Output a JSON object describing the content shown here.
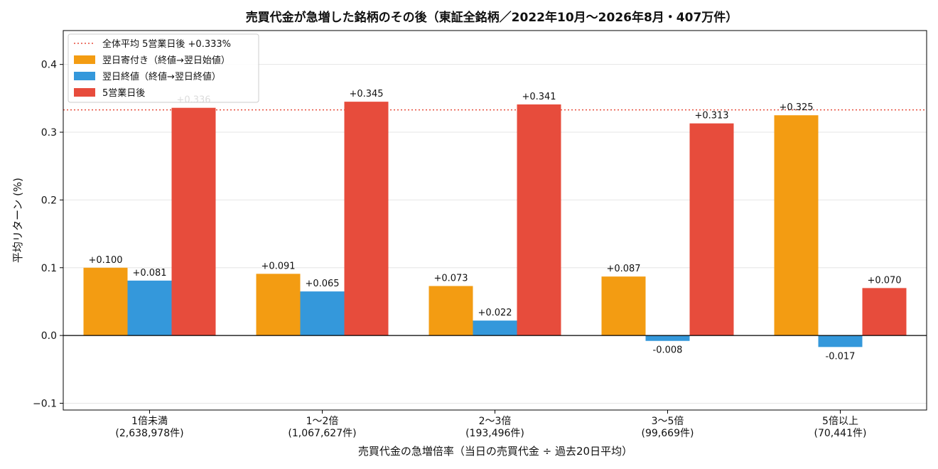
{
  "chart_data": {
    "type": "bar",
    "title": "売買代金が急増した銘柄のその後（東証全銘柄／2022年10月〜2026年8月・407万件）",
    "xlabel": "売買代金の急増倍率（当日の売買代金 ÷ 過去20日平均）",
    "ylabel": "平均リターン (%)",
    "ylim": [
      -0.11,
      0.45
    ],
    "yticks": [
      -0.1,
      0.0,
      0.1,
      0.2,
      0.3,
      0.4
    ],
    "ytick_labels": [
      "−0.1",
      "0.0",
      "0.1",
      "0.2",
      "0.3",
      "0.4"
    ],
    "grid": true,
    "legend_position": "top-left",
    "categories": [
      "1倍未満",
      "1〜2倍",
      "2〜3倍",
      "3〜5倍",
      "5倍以上"
    ],
    "category_counts": [
      "(2,638,978件)",
      "(1,067,627件)",
      "(193,496件)",
      "(99,669件)",
      "(70,441件)"
    ],
    "series": [
      {
        "name": "翌日寄付き（終値→翌日始値）",
        "color": "#f39c12",
        "values": [
          0.1,
          0.091,
          0.073,
          0.087,
          0.325
        ],
        "labels": [
          "+0.100",
          "+0.091",
          "+0.073",
          "+0.087",
          "+0.325"
        ]
      },
      {
        "name": "翌日終値（終値→翌日終値）",
        "color": "#3498db",
        "values": [
          0.081,
          0.065,
          0.022,
          -0.008,
          -0.017
        ],
        "labels": [
          "+0.081",
          "+0.065",
          "+0.022",
          "-0.008",
          "-0.017"
        ]
      },
      {
        "name": "5営業日後",
        "color": "#e74c3c",
        "values": [
          0.336,
          0.345,
          0.341,
          0.313,
          0.07
        ],
        "labels": [
          "+0.336",
          "+0.345",
          "+0.341",
          "+0.313",
          "+0.070"
        ]
      }
    ],
    "reference_line": {
      "name": "全体平均 5営業日後 +0.333%",
      "value": 0.333,
      "color": "#e74c3c",
      "style": "dotted"
    }
  }
}
